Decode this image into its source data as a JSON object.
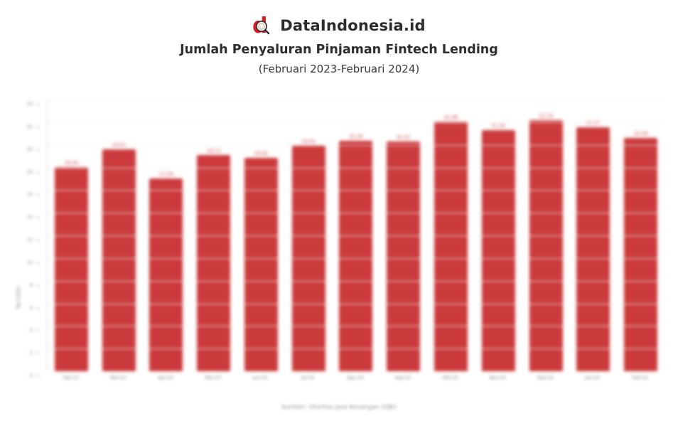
{
  "header": {
    "brand": "DataIndonesia.id",
    "title": "Jumlah Penyaluran Pinjaman Fintech Lending",
    "subtitle": "(Februari 2023-Februari 2024)"
  },
  "chart_data": {
    "type": "bar",
    "title": "Jumlah Penyaluran Pinjaman Fintech Lending",
    "subtitle": "(Februari 2023-Februari 2024)",
    "categories": [
      "Feb-23",
      "Mar-23",
      "Apr-23",
      "Mei-23",
      "Jun-23",
      "Jul-23",
      "Agu-23",
      "Sep-23",
      "Okt-23",
      "Nov-23",
      "Des-23",
      "Jan-24",
      "Feb-24"
    ],
    "values": [
      18.02,
      19.62,
      17.04,
      19.12,
      18.82,
      19.92,
      20.35,
      20.31,
      22.06,
      21.32,
      22.19,
      21.57,
      20.59
    ],
    "value_labels": [
      "18,02",
      "19,62",
      "17,04",
      "19,12",
      "18,82",
      "19,92",
      "20,35",
      "20,31",
      "22,06",
      "21,32",
      "22,19",
      "21,57",
      "20,59"
    ],
    "xlabel": "",
    "ylabel": "Rp triliun",
    "ylim": [
      0,
      24
    ],
    "ytick_step": 2,
    "grid": true,
    "legend": "none",
    "bar_color": "#cb3a3c",
    "value_label_color": "#cb3a3c"
  },
  "colors": {
    "brand_red": "#d71f26",
    "bar_red": "#cb3a3c",
    "title_text": "#2e2e2e",
    "axis_text": "#7a7a7a"
  },
  "icons": {
    "logo": "dataindonesia-magnifier-d"
  },
  "footer": {
    "source": "Sumber: Otoritas Jasa Keuangan (OJK)"
  }
}
